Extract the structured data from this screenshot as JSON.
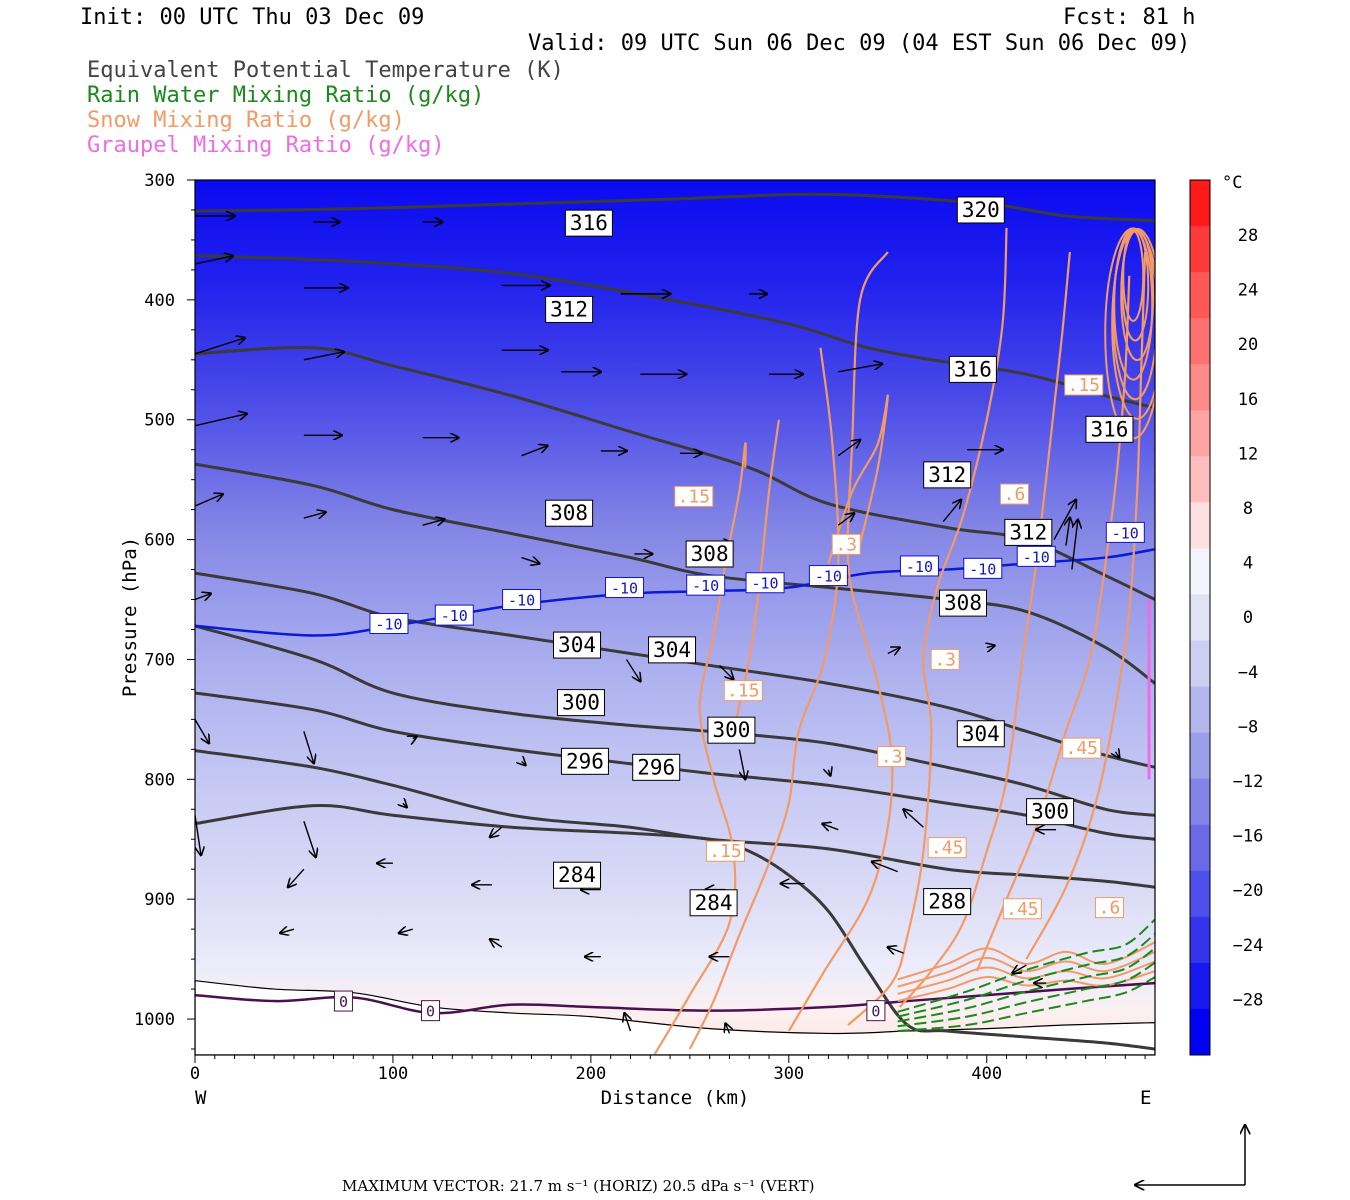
{
  "header": {
    "init": "Init: 00 UTC Thu 03 Dec 09",
    "fcst": "Fcst:   81 h",
    "valid": "Valid: 09 UTC Sun 06 Dec 09 (04 EST Sun 06 Dec 09)"
  },
  "legend": [
    {
      "label": "Equivalent Potential Temperature (K)",
      "color": "#444444"
    },
    {
      "label": "Rain Water Mixing Ratio (g/kg)",
      "color": "#1a8a1a"
    },
    {
      "label": "Snow Mixing Ratio (g/kg)",
      "color": "#f39a66"
    },
    {
      "label": "Graupel Mixing Ratio (g/kg)",
      "color": "#f06ce6"
    }
  ],
  "axes": {
    "y_title": "Pressure (hPa)",
    "x_title": "Distance (km)",
    "west": "W",
    "east": "E"
  },
  "colorbar": {
    "unit": "°C",
    "labels": [
      "28",
      "24",
      "20",
      "16",
      "12",
      "8",
      "4",
      "0",
      "−4",
      "−8",
      "−12",
      "−16",
      "−20",
      "−24",
      "−28"
    ],
    "colors": [
      "#ff1a1a",
      "#ff3a3a",
      "#ff5656",
      "#ff7070",
      "#ff8a8a",
      "#ffa4a4",
      "#ffbebe",
      "#ffe0e0",
      "#f4f4fc",
      "#e2e2f6",
      "#cccef2",
      "#b4b6ee",
      "#9c9eea",
      "#8284e8",
      "#6a6ae8",
      "#4e4eea",
      "#3434ec",
      "#1818f0",
      "#0000f2"
    ]
  },
  "footer": {
    "max_vector": "MAXIMUM VECTOR:  21.7 m s⁻¹ (HORIZ)        20.5 dPa s⁻¹ (VERT)"
  },
  "chart_data": {
    "type": "cross-section",
    "title": "",
    "xlabel": "Distance (km)",
    "ylabel": "Pressure (hPa)",
    "xlim": [
      0,
      485
    ],
    "ylim": [
      1030,
      300
    ],
    "x_ticks": [
      0,
      100,
      200,
      300,
      400
    ],
    "y_ticks": [
      300,
      400,
      500,
      600,
      700,
      800,
      900,
      1000
    ],
    "theta_e_contours": [
      {
        "value": 320,
        "x": [
          0,
          80,
          160,
          240,
          320,
          400,
          440,
          485
        ],
        "p": [
          326,
          324,
          320,
          316,
          312,
          320,
          330,
          334
        ]
      },
      {
        "value": 316,
        "x": [
          0,
          80,
          160,
          240,
          300,
          340,
          380,
          420,
          460,
          485
        ],
        "p": [
          363,
          368,
          378,
          400,
          420,
          440,
          452,
          462,
          480,
          490
        ]
      },
      {
        "value": 312,
        "x": [
          0,
          60,
          100,
          160,
          220,
          280,
          320,
          380,
          420,
          460,
          485
        ],
        "p": [
          445,
          440,
          455,
          480,
          510,
          540,
          570,
          590,
          600,
          630,
          650
        ]
      },
      {
        "value": 308,
        "x": [
          0,
          60,
          100,
          160,
          220,
          260,
          320,
          380,
          420,
          460,
          485
        ],
        "p": [
          537,
          555,
          575,
          595,
          615,
          630,
          640,
          650,
          660,
          690,
          720
        ]
      },
      {
        "value": 304,
        "x": [
          0,
          60,
          100,
          160,
          220,
          260,
          320,
          380,
          420,
          460,
          485
        ],
        "p": [
          628,
          645,
          665,
          680,
          695,
          705,
          720,
          740,
          760,
          780,
          790
        ]
      },
      {
        "value": 300,
        "x": [
          0,
          60,
          100,
          160,
          220,
          260,
          320,
          380,
          420,
          460,
          485
        ],
        "p": [
          672,
          700,
          728,
          745,
          755,
          760,
          770,
          790,
          805,
          825,
          830
        ]
      },
      {
        "value": 296,
        "x": [
          0,
          60,
          100,
          160,
          220,
          260,
          320,
          380,
          420,
          460,
          485
        ],
        "p": [
          728,
          742,
          760,
          775,
          787,
          795,
          805,
          820,
          830,
          845,
          850
        ]
      },
      {
        "value": 288,
        "x": [
          0,
          60,
          100,
          160,
          220,
          260,
          320,
          380,
          420,
          460,
          485
        ],
        "p": [
          776,
          790,
          805,
          830,
          840,
          850,
          858,
          875,
          880,
          885,
          890
        ]
      },
      {
        "value": 284,
        "x": [
          0,
          60,
          100,
          160,
          220,
          260,
          280,
          300,
          320,
          340,
          360,
          380,
          420,
          460,
          485
        ],
        "p": [
          837,
          822,
          830,
          840,
          845,
          850,
          860,
          880,
          910,
          960,
          1005,
          1010,
          1015,
          1020,
          1025
        ]
      }
    ],
    "minus10_isotherm": {
      "x": [
        0,
        60,
        100,
        160,
        220,
        260,
        300,
        340,
        380,
        420,
        460,
        485
      ],
      "p": [
        672,
        680,
        672,
        655,
        645,
        643,
        640,
        628,
        625,
        620,
        615,
        608
      ]
    },
    "zero_isotherm": {
      "x": [
        0,
        40,
        80,
        120,
        160,
        200,
        260,
        320,
        360,
        400,
        440,
        485
      ],
      "p": [
        980,
        985,
        982,
        995,
        988,
        990,
        993,
        990,
        985,
        980,
        975,
        970
      ]
    },
    "contour_labels": [
      {
        "text": "316",
        "x": 199,
        "p": 336
      },
      {
        "text": "320",
        "x": 397,
        "p": 325
      },
      {
        "text": "312",
        "x": 189,
        "p": 408
      },
      {
        "text": "316",
        "x": 393,
        "p": 458
      },
      {
        "text": "316",
        "x": 462,
        "p": 508
      },
      {
        "text": "312",
        "x": 380,
        "p": 546
      },
      {
        "text": "308",
        "x": 189,
        "p": 578
      },
      {
        "text": "312",
        "x": 421,
        "p": 594
      },
      {
        "text": "308",
        "x": 260,
        "p": 612
      },
      {
        "text": "308",
        "x": 388,
        "p": 653
      },
      {
        "text": "304",
        "x": 193,
        "p": 688
      },
      {
        "text": "304",
        "x": 241,
        "p": 692
      },
      {
        "text": "300",
        "x": 195,
        "p": 736
      },
      {
        "text": "300",
        "x": 271,
        "p": 759
      },
      {
        "text": "304",
        "x": 397,
        "p": 762
      },
      {
        "text": "296",
        "x": 197,
        "p": 785
      },
      {
        "text": "296",
        "x": 233,
        "p": 790
      },
      {
        "text": "300",
        "x": 432,
        "p": 827
      },
      {
        "text": "284",
        "x": 193,
        "p": 880
      },
      {
        "text": "284",
        "x": 262,
        "p": 903
      },
      {
        "text": "288",
        "x": 380,
        "p": 902
      }
    ],
    "temp_labels": [
      {
        "text": "-10",
        "x": 98,
        "p": 670
      },
      {
        "text": "-10",
        "x": 131,
        "p": 663
      },
      {
        "text": "-10",
        "x": 165,
        "p": 650
      },
      {
        "text": "-10",
        "x": 217,
        "p": 640
      },
      {
        "text": "-10",
        "x": 258,
        "p": 638
      },
      {
        "text": "-10",
        "x": 288,
        "p": 636
      },
      {
        "text": "-10",
        "x": 320,
        "p": 630
      },
      {
        "text": "-10",
        "x": 366,
        "p": 622
      },
      {
        "text": "-10",
        "x": 398,
        "p": 624
      },
      {
        "text": "-10",
        "x": 425,
        "p": 614
      },
      {
        "text": "-10",
        "x": 470,
        "p": 594
      }
    ],
    "snow_labels": [
      {
        "text": ".15",
        "x": 252,
        "p": 564
      },
      {
        "text": ".3",
        "x": 329,
        "p": 604
      },
      {
        "text": ".3",
        "x": 379,
        "p": 700
      },
      {
        "text": ".15",
        "x": 277,
        "p": 726
      },
      {
        "text": ".3",
        "x": 352,
        "p": 781
      },
      {
        "text": ".15",
        "x": 268,
        "p": 860
      },
      {
        "text": ".45",
        "x": 380,
        "p": 857
      },
      {
        "text": ".45",
        "x": 448,
        "p": 774
      },
      {
        "text": ".6",
        "x": 414,
        "p": 562
      },
      {
        "text": ".15",
        "x": 449,
        "p": 471
      },
      {
        "text": ".45",
        "x": 418,
        "p": 908
      },
      {
        "text": ".6",
        "x": 462,
        "p": 907
      }
    ],
    "zero_labels": [
      {
        "text": "0",
        "x": 75,
        "p": 985
      },
      {
        "text": "0",
        "x": 119,
        "p": 993
      },
      {
        "text": "0",
        "x": 344,
        "p": 993
      }
    ]
  }
}
